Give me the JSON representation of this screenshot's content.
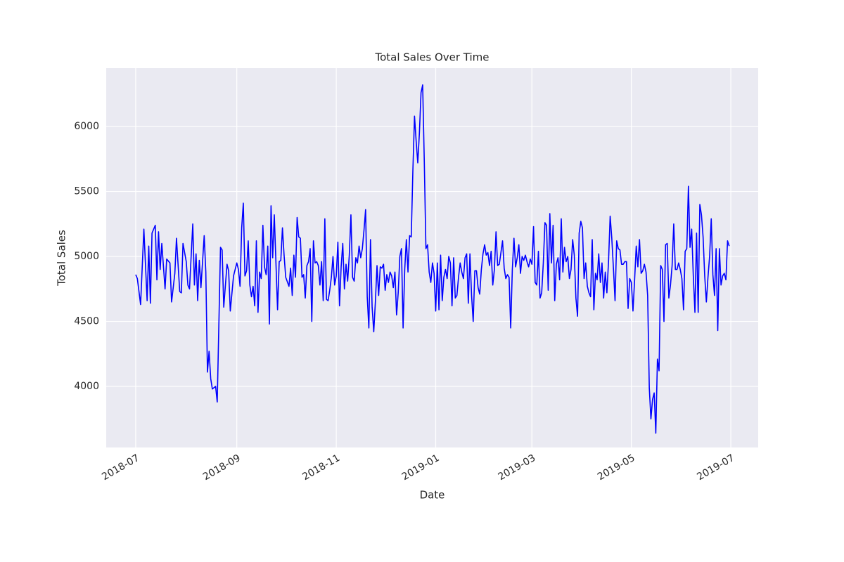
{
  "chart_data": {
    "type": "line",
    "title": "Total Sales Over Time",
    "x_label": "Date",
    "y_label": "Total Sales",
    "color": "#0000ff",
    "grid": true,
    "xlim": [
      -18.1,
      381.8
    ],
    "xticks": [
      {
        "value": 0,
        "label": "2018-07"
      },
      {
        "value": 62,
        "label": "2018-09"
      },
      {
        "value": 123,
        "label": "2018-11"
      },
      {
        "value": 184,
        "label": "2019-01"
      },
      {
        "value": 243,
        "label": "2019-03"
      },
      {
        "value": 304,
        "label": "2019-05"
      },
      {
        "value": 365,
        "label": "2019-07"
      }
    ],
    "ylim": [
      3530,
      6449
    ],
    "yticks": [
      4000,
      4500,
      5000,
      5500,
      6000
    ],
    "x": [
      0,
      1,
      3,
      5,
      7,
      8,
      9,
      10,
      12,
      13,
      14,
      15,
      16,
      18,
      19,
      21,
      22,
      24,
      25,
      27,
      28,
      29,
      31,
      32,
      33,
      35,
      36,
      37,
      38,
      39,
      40,
      42,
      43,
      44,
      45,
      46,
      47,
      49,
      50,
      52,
      53,
      54,
      56,
      57,
      58,
      60,
      62,
      63,
      64,
      65,
      66,
      67,
      68,
      69,
      70,
      71,
      72,
      73,
      74,
      75,
      76,
      77,
      78,
      79,
      80,
      81,
      82,
      83,
      84,
      85,
      87,
      88,
      89,
      90,
      91,
      92,
      94,
      95,
      96,
      97,
      98,
      99,
      100,
      101,
      102,
      103,
      104,
      105,
      106,
      107,
      108,
      109,
      110,
      111,
      112,
      113,
      114,
      115,
      116,
      117,
      118,
      119,
      120,
      121,
      122,
      123,
      124,
      125,
      126,
      127,
      128,
      129,
      130,
      131,
      132,
      133,
      134,
      135,
      136,
      137,
      138,
      139,
      140,
      141,
      142,
      143,
      144,
      145,
      146,
      147,
      148,
      149,
      150,
      151,
      152,
      153,
      154,
      155,
      156,
      157,
      158,
      159,
      160,
      161,
      162,
      163,
      164,
      165,
      166,
      167,
      168,
      169,
      170,
      171,
      172,
      173,
      174,
      175,
      176,
      177,
      178,
      179,
      180,
      181,
      182,
      183,
      184,
      185,
      186,
      187,
      188,
      189,
      190,
      191,
      192,
      193,
      194,
      195,
      196,
      197,
      198,
      199,
      200,
      201,
      202,
      203,
      204,
      205,
      206,
      207,
      208,
      209,
      210,
      211,
      212,
      213,
      214,
      215,
      216,
      217,
      218,
      219,
      220,
      221,
      222,
      223,
      224,
      225,
      226,
      227,
      228,
      229,
      230,
      231,
      232,
      233,
      234,
      235,
      236,
      237,
      238,
      239,
      240,
      241,
      242,
      243,
      244,
      245,
      246,
      247,
      248,
      249,
      250,
      251,
      252,
      253,
      254,
      255,
      256,
      257,
      258,
      259,
      260,
      261,
      262,
      263,
      264,
      265,
      266,
      267,
      268,
      269,
      270,
      271,
      272,
      273,
      274,
      275,
      276,
      277,
      278,
      279,
      280,
      281,
      282,
      283,
      284,
      285,
      286,
      287,
      288,
      289,
      290,
      291,
      292,
      293,
      294,
      295,
      296,
      297,
      298,
      299,
      300,
      301,
      302,
      303,
      304,
      305,
      306,
      307,
      308,
      309,
      310,
      311,
      312,
      313,
      314,
      315,
      316,
      317,
      318,
      319,
      320,
      321,
      322,
      323,
      324,
      325,
      326,
      327,
      328,
      329,
      330,
      331,
      332,
      333,
      334,
      335,
      336,
      337,
      338,
      339,
      340,
      341,
      342,
      343,
      344,
      345,
      346,
      347,
      348,
      349,
      350,
      351,
      352,
      353,
      354,
      355,
      356,
      357,
      358,
      359,
      360,
      361,
      362,
      363,
      364
    ],
    "values": [
      4860,
      4830,
      4630,
      5210,
      4660,
      5080,
      4640,
      5180,
      5240,
      4820,
      5190,
      4900,
      5100,
      4750,
      4980,
      4950,
      4650,
      4870,
      5140,
      4730,
      4720,
      5100,
      4960,
      4780,
      4750,
      5250,
      4780,
      5020,
      4660,
      4970,
      4760,
      5160,
      4880,
      4110,
      4270,
      4060,
      3980,
      4000,
      3880,
      5070,
      5050,
      4610,
      4940,
      4890,
      4580,
      4850,
      4950,
      4900,
      4770,
      5220,
      5410,
      4850,
      4890,
      5120,
      4780,
      4690,
      4770,
      4620,
      5120,
      4570,
      4880,
      4830,
      5240,
      4920,
      4860,
      5080,
      4480,
      5390,
      4990,
      5320,
      4590,
      4960,
      4970,
      5220,
      5010,
      4840,
      4770,
      4910,
      4700,
      5010,
      4840,
      5300,
      5150,
      5140,
      4840,
      4860,
      4680,
      4930,
      4960,
      5060,
      4500,
      5120,
      4950,
      4960,
      4930,
      4780,
      4960,
      4660,
      5290,
      4670,
      4660,
      4740,
      4840,
      5000,
      4780,
      4850,
      5110,
      4620,
      4920,
      5100,
      4750,
      4940,
      4810,
      5010,
      5320,
      4840,
      4810,
      4990,
      4950,
      5080,
      4990,
      5060,
      5200,
      5360,
      4690,
      4450,
      5130,
      4610,
      4420,
      4650,
      4930,
      4700,
      4920,
      4910,
      4940,
      4740,
      4860,
      4800,
      4880,
      4850,
      4760,
      4880,
      4550,
      4720,
      5000,
      5060,
      4450,
      4900,
      5130,
      4880,
      5160,
      5150,
      5660,
      6080,
      5890,
      5720,
      5950,
      6260,
      6320,
      5730,
      5060,
      5090,
      4880,
      4800,
      4950,
      4870,
      4580,
      4950,
      4590,
      5010,
      4660,
      4840,
      4900,
      4830,
      5000,
      4950,
      4620,
      4990,
      4680,
      4700,
      4840,
      4950,
      4880,
      4830,
      4990,
      5020,
      4640,
      5020,
      4700,
      4500,
      4890,
      4890,
      4760,
      4710,
      4900,
      5020,
      5090,
      5010,
      5030,
      4930,
      5040,
      4780,
      4900,
      5190,
      4930,
      4940,
      5030,
      5120,
      4910,
      4830,
      4860,
      4840,
      4450,
      4900,
      5140,
      4920,
      4990,
      5090,
      4870,
      5000,
      4970,
      5010,
      4960,
      4920,
      4980,
      4940,
      5230,
      4800,
      4780,
      5040,
      4680,
      4720,
      4950,
      5260,
      5240,
      4740,
      5330,
      4950,
      5240,
      4660,
      4940,
      4990,
      4820,
      5290,
      4880,
      5070,
      4960,
      5000,
      4830,
      4900,
      5130,
      5010,
      4680,
      4540,
      5180,
      5270,
      5220,
      4830,
      4950,
      4770,
      4720,
      4690,
      5130,
      4590,
      4870,
      4820,
      5020,
      4800,
      4950,
      4680,
      4880,
      4720,
      4960,
      5310,
      5140,
      4910,
      4660,
      5120,
      5060,
      5050,
      4940,
      4940,
      4960,
      4960,
      4600,
      4830,
      4800,
      4580,
      4820,
      5080,
      4920,
      5130,
      4870,
      4890,
      4940,
      4880,
      4700,
      3990,
      3750,
      3900,
      3950,
      3640,
      4210,
      4120,
      4930,
      4900,
      4500,
      5090,
      5100,
      4680,
      4780,
      4930,
      5250,
      4900,
      4900,
      4950,
      4900,
      4830,
      4590,
      5040,
      5060,
      5540,
      5070,
      5210,
      4850,
      4570,
      5180,
      4570,
      5400,
      5320,
      5150,
      4850,
      4650,
      4840,
      5000,
      5290,
      4860,
      4700,
      5060,
      4430,
      5060,
      4780,
      4850,
      4870,
      4820,
      5120,
      5080
    ]
  }
}
